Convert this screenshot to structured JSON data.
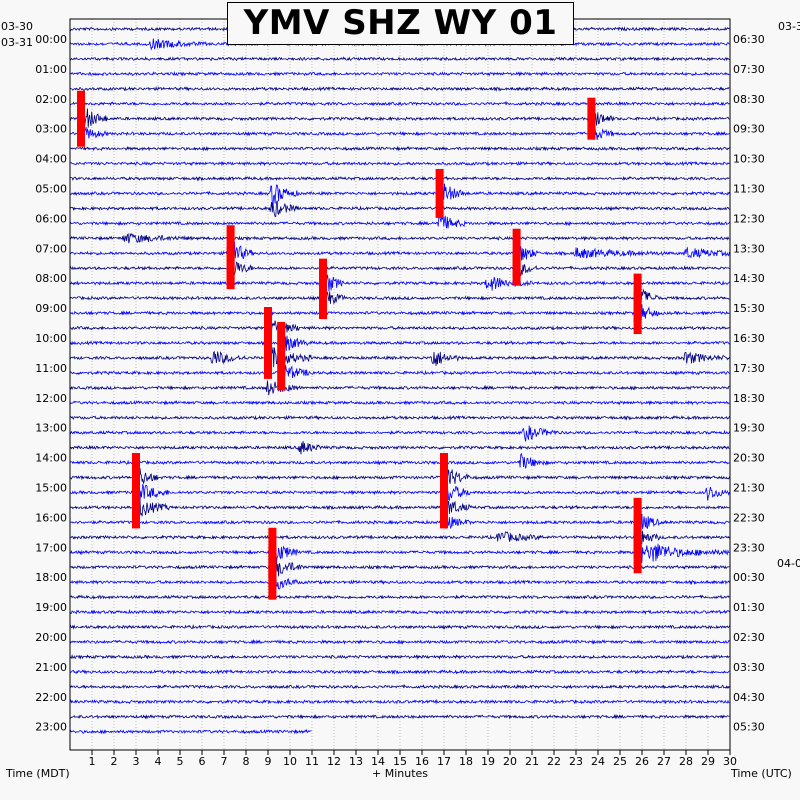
{
  "chart_data": {
    "type": "seismogram-helicorder",
    "title": "YMV SHZ WY 01",
    "left_date_top": "03-30",
    "left_date": "03-31",
    "right_date_top": "03-3",
    "right_date_bottom": "04-0",
    "left_hour_labels": [
      "00:00",
      "01:00",
      "02:00",
      "03:00",
      "04:00",
      "05:00",
      "06:00",
      "07:00",
      "08:00",
      "09:00",
      "10:00",
      "11:00",
      "12:00",
      "13:00",
      "14:00",
      "15:00",
      "16:00",
      "17:00",
      "18:00",
      "19:00",
      "20:00",
      "21:00",
      "22:00",
      "23:00"
    ],
    "right_hour_labels": [
      "06:30",
      "07:30",
      "08:30",
      "09:30",
      "10:30",
      "11:30",
      "12:30",
      "13:30",
      "14:30",
      "15:30",
      "16:30",
      "17:30",
      "18:30",
      "19:30",
      "20:30",
      "21:30",
      "22:30",
      "23:30",
      "00:30",
      "01:30",
      "02:30",
      "03:30",
      "04:30",
      "05:30"
    ],
    "x_ticks": [
      "1",
      "2",
      "3",
      "4",
      "5",
      "6",
      "7",
      "8",
      "9",
      "10",
      "11",
      "12",
      "13",
      "14",
      "15",
      "16",
      "17",
      "18",
      "19",
      "20",
      "21",
      "22",
      "23",
      "24",
      "25",
      "26",
      "27",
      "28",
      "29",
      "30"
    ],
    "xlabel": "+ Minutes",
    "left_axis_label": "Time (MDT)",
    "right_axis_label": "Time (UTC)",
    "xlim": [
      0,
      30
    ],
    "trace_count": 48,
    "trace_minutes": 30,
    "colors": [
      "#000080",
      "#0000ff"
    ],
    "highlight_color": "#ff0000",
    "events": [
      {
        "trace": 1,
        "minute": 3.7,
        "amp": 1.2,
        "dur": 2.5
      },
      {
        "trace": 6,
        "minute": 0.5,
        "amp": 4.0,
        "dur": 1.2,
        "red": true
      },
      {
        "trace": 7,
        "minute": 0.5,
        "amp": 2.2,
        "dur": 1.2
      },
      {
        "trace": 6,
        "minute": 23.7,
        "amp": 3.0,
        "dur": 1.0,
        "red": true
      },
      {
        "trace": 7,
        "minute": 23.7,
        "amp": 2.5,
        "dur": 1.0
      },
      {
        "trace": 11,
        "minute": 9.2,
        "amp": 3.0,
        "dur": 1.2
      },
      {
        "trace": 12,
        "minute": 9.2,
        "amp": 2.5,
        "dur": 1.2
      },
      {
        "trace": 11,
        "minute": 16.8,
        "amp": 3.5,
        "dur": 1.2,
        "red": true
      },
      {
        "trace": 13,
        "minute": 16.8,
        "amp": 2.5,
        "dur": 1.2
      },
      {
        "trace": 14,
        "minute": 2.5,
        "amp": 1.2,
        "dur": 3.0
      },
      {
        "trace": 15,
        "minute": 7.3,
        "amp": 4.0,
        "dur": 1.0,
        "red": true
      },
      {
        "trace": 16,
        "minute": 7.3,
        "amp": 3.0,
        "dur": 1.0,
        "red": true
      },
      {
        "trace": 15,
        "minute": 20.3,
        "amp": 3.5,
        "dur": 1.0,
        "red": true
      },
      {
        "trace": 16,
        "minute": 20.3,
        "amp": 2.5,
        "dur": 1.0,
        "red": true
      },
      {
        "trace": 17,
        "minute": 19.0,
        "amp": 2.0,
        "dur": 2.0
      },
      {
        "trace": 15,
        "minute": 23.0,
        "amp": 1.2,
        "dur": 4.0
      },
      {
        "trace": 15,
        "minute": 28.0,
        "amp": 1.2,
        "dur": 3.0
      },
      {
        "trace": 17,
        "minute": 11.5,
        "amp": 3.5,
        "dur": 1.0,
        "red": true
      },
      {
        "trace": 18,
        "minute": 11.5,
        "amp": 3.0,
        "dur": 1.0,
        "red": true
      },
      {
        "trace": 18,
        "minute": 25.8,
        "amp": 3.5,
        "dur": 1.0,
        "red": true
      },
      {
        "trace": 19,
        "minute": 25.8,
        "amp": 3.0,
        "dur": 1.0,
        "red": true
      },
      {
        "trace": 20,
        "minute": 9.0,
        "amp": 3.0,
        "dur": 1.5,
        "red": true
      },
      {
        "trace": 21,
        "minute": 9.6,
        "amp": 3.0,
        "dur": 1.2,
        "red": true
      },
      {
        "trace": 22,
        "minute": 9.0,
        "amp": 3.0,
        "dur": 2.0,
        "red": true
      },
      {
        "trace": 23,
        "minute": 9.6,
        "amp": 2.5,
        "dur": 1.5,
        "red": true
      },
      {
        "trace": 24,
        "minute": 9.0,
        "amp": 2.0,
        "dur": 1.5
      },
      {
        "trace": 22,
        "minute": 16.5,
        "amp": 2.5,
        "dur": 1.2
      },
      {
        "trace": 22,
        "minute": 6.5,
        "amp": 2.0,
        "dur": 1.5
      },
      {
        "trace": 22,
        "minute": 28.0,
        "amp": 1.5,
        "dur": 2.0
      },
      {
        "trace": 27,
        "minute": 20.7,
        "amp": 2.0,
        "dur": 1.5
      },
      {
        "trace": 28,
        "minute": 10.5,
        "amp": 1.8,
        "dur": 1.0
      },
      {
        "trace": 29,
        "minute": 20.5,
        "amp": 2.0,
        "dur": 1.2
      },
      {
        "trace": 30,
        "minute": 17.0,
        "amp": 3.5,
        "dur": 1.2,
        "red": true
      },
      {
        "trace": 31,
        "minute": 17.0,
        "amp": 3.5,
        "dur": 1.2,
        "red": true
      },
      {
        "trace": 32,
        "minute": 17.0,
        "amp": 3.0,
        "dur": 1.2,
        "red": true
      },
      {
        "trace": 30,
        "minute": 3.0,
        "amp": 3.5,
        "dur": 1.0,
        "red": true
      },
      {
        "trace": 31,
        "minute": 3.0,
        "amp": 3.0,
        "dur": 1.5,
        "red": true
      },
      {
        "trace": 32,
        "minute": 3.0,
        "amp": 3.0,
        "dur": 1.5,
        "red": true
      },
      {
        "trace": 31,
        "minute": 29.0,
        "amp": 2.0,
        "dur": 1.0
      },
      {
        "trace": 33,
        "minute": 17.0,
        "amp": 2.0,
        "dur": 1.2
      },
      {
        "trace": 33,
        "minute": 25.8,
        "amp": 3.5,
        "dur": 1.0,
        "red": true
      },
      {
        "trace": 34,
        "minute": 25.8,
        "amp": 3.0,
        "dur": 1.0,
        "red": true
      },
      {
        "trace": 35,
        "minute": 25.8,
        "amp": 3.0,
        "dur": 1.5,
        "red": true
      },
      {
        "trace": 35,
        "minute": 26.5,
        "amp": 1.5,
        "dur": 4.0
      },
      {
        "trace": 34,
        "minute": 19.5,
        "amp": 1.5,
        "dur": 2.0
      },
      {
        "trace": 35,
        "minute": 9.2,
        "amp": 3.5,
        "dur": 1.2,
        "red": true
      },
      {
        "trace": 36,
        "minute": 9.2,
        "amp": 3.0,
        "dur": 1.5,
        "red": true
      },
      {
        "trace": 37,
        "minute": 9.2,
        "amp": 2.5,
        "dur": 1.2,
        "red": true
      }
    ]
  }
}
